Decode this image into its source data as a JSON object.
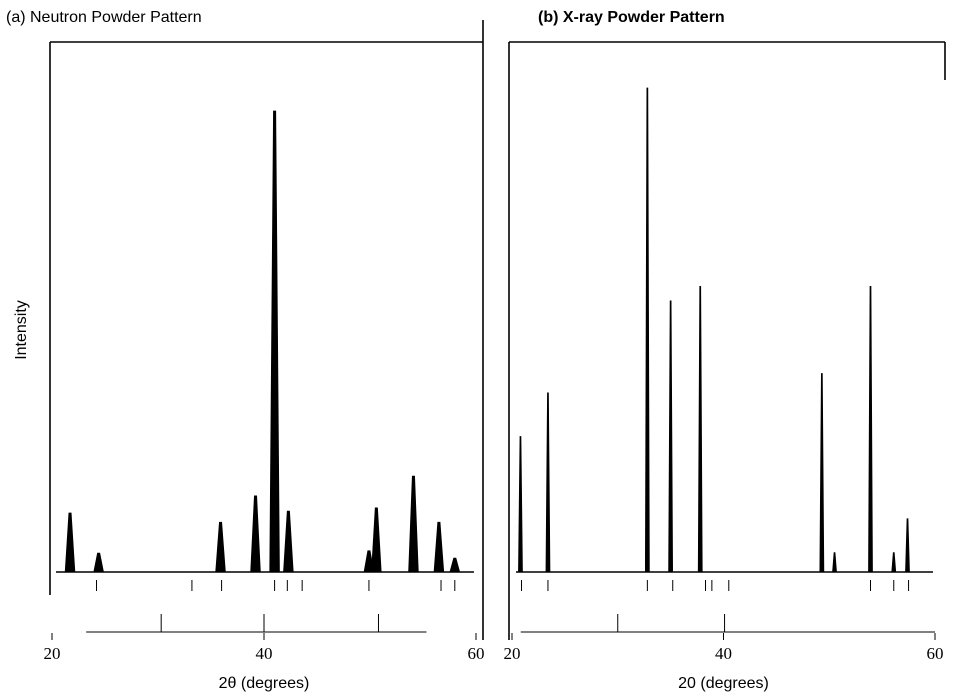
{
  "chart_data": [
    {
      "type": "peaks",
      "title": "(a) Neutron Powder Pattern",
      "ylabel": "Intensity",
      "xlabel": "2θ (degrees)",
      "x": [
        21.7,
        24.4,
        35.9,
        39.2,
        41.0,
        42.3,
        49.9,
        50.6,
        54.1,
        56.5,
        58.0
      ],
      "values": [
        12.8,
        4.1,
        10.8,
        16.5,
        100,
        13.2,
        4.6,
        13.9,
        20.8,
        10.8,
        3
      ],
      "reflections": [
        [
          24.2,
          33.2,
          36.0,
          41.0,
          42.2,
          43.6,
          49.9,
          56.7,
          58.0
        ],
        [
          30.3,
          40.0,
          50.8
        ]
      ],
      "xlim": [
        20,
        60
      ],
      "xticks": [
        20,
        40,
        60
      ],
      "ylim": [
        0,
        105
      ],
      "color": "#000000"
    },
    {
      "type": "peaks",
      "title": "(b) X-ray Powder Pattern",
      "xlabel": "20 (degrees)",
      "x": [
        20.8,
        23.4,
        32.8,
        35.0,
        37.8,
        49.3,
        50.5,
        53.9,
        56.1,
        57.4
      ],
      "values": [
        28,
        37,
        100,
        56,
        59,
        41,
        4,
        59,
        4,
        11
      ],
      "reflections": [
        [
          20.9,
          23.4,
          32.8,
          35.2,
          38.3,
          38.9,
          40.5,
          53.9,
          56.1,
          57.5
        ],
        [
          30.0,
          40.1
        ]
      ],
      "xlim": [
        20,
        60
      ],
      "xticks": [
        20,
        40,
        60
      ],
      "ylim": [
        0,
        100
      ],
      "color": "#000000"
    }
  ]
}
